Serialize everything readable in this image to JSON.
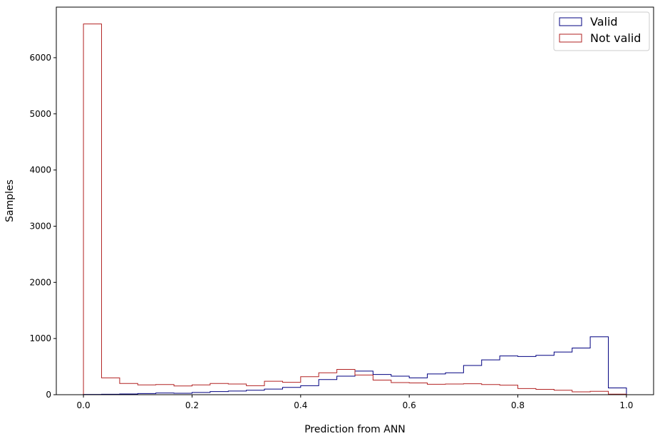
{
  "chart_data": {
    "type": "histogram",
    "title": "",
    "xlabel": "Prediction from ANN",
    "ylabel": "Samples",
    "xlim": [
      -0.05,
      1.05
    ],
    "ylim": [
      0,
      6900
    ],
    "x_ticks": [
      0.0,
      0.2,
      0.4,
      0.6,
      0.8,
      1.0
    ],
    "x_tick_labels": [
      "0.0",
      "0.2",
      "0.4",
      "0.6",
      "0.8",
      "1.0"
    ],
    "y_ticks": [
      0,
      1000,
      2000,
      3000,
      4000,
      5000,
      6000
    ],
    "y_tick_labels": [
      "0",
      "1000",
      "2000",
      "3000",
      "4000",
      "5000",
      "6000"
    ],
    "grid": false,
    "legend_position": "top-right",
    "bin_edges": [
      0.0,
      0.0333,
      0.0667,
      0.1,
      0.1333,
      0.1667,
      0.2,
      0.2333,
      0.2667,
      0.3,
      0.3333,
      0.3667,
      0.4,
      0.4333,
      0.4667,
      0.5,
      0.5333,
      0.5667,
      0.6,
      0.6333,
      0.6667,
      0.7,
      0.7333,
      0.7667,
      0.8,
      0.8333,
      0.8667,
      0.9,
      0.9333,
      0.9667,
      1.0
    ],
    "series": [
      {
        "name": "Valid",
        "color": "#000080",
        "values": [
          5,
          8,
          12,
          20,
          30,
          25,
          40,
          55,
          65,
          80,
          100,
          130,
          160,
          270,
          330,
          420,
          360,
          330,
          300,
          370,
          390,
          520,
          620,
          690,
          680,
          700,
          760,
          830,
          1030,
          120
        ]
      },
      {
        "name": "Not valid",
        "color": "#b22222",
        "values": [
          6600,
          300,
          200,
          175,
          180,
          155,
          175,
          200,
          190,
          160,
          240,
          220,
          320,
          390,
          450,
          350,
          260,
          215,
          210,
          185,
          190,
          195,
          180,
          170,
          110,
          95,
          80,
          50,
          60,
          10
        ]
      }
    ]
  }
}
